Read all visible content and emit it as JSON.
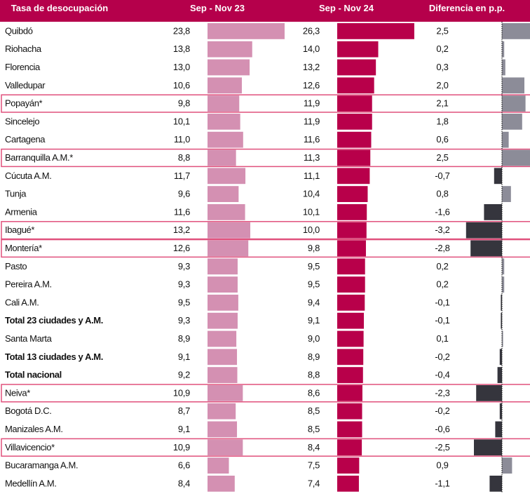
{
  "chart_data": {
    "type": "bar",
    "title": "",
    "headers": [
      "Tasa de desocupación",
      "Sep - Nov 23",
      "Sep - Nov 24",
      "Diferencia en p.p."
    ],
    "xlabel": "",
    "ylabel": "",
    "colors": {
      "header_bg": "#b5004b",
      "series_2023": "#d490b2",
      "series_2024": "#b8004a",
      "diff_positive": "#8c8c98",
      "diff_negative": "#35353d",
      "highlight_border": "#e0507c"
    },
    "categories": [
      "Quibdó",
      "Riohacha",
      "Florencia",
      "Valledupar",
      "Popayán*",
      "Sincelejo",
      "Cartagena",
      "Barranquilla A.M.*",
      "Cúcuta A.M.",
      "Tunja",
      "Armenia",
      "Ibagué*",
      "Montería*",
      "Pasto",
      "Pereira A.M.",
      "Cali A.M.",
      "Total 23 ciudades y A.M.",
      "Santa Marta",
      "Total 13 ciudades y A.M.",
      "Total nacional",
      "Neiva*",
      "Bogotá D.C.",
      "Manizales A.M.",
      "Villavicencio*",
      "Bucaramanga A.M.",
      "Medellín A.M."
    ],
    "labels_2023": [
      "23,8",
      "13,8",
      "13,0",
      "10,6",
      "9,8",
      "10,1",
      "11,0",
      "8,8",
      "11,7",
      "9,6",
      "11,6",
      "13,2",
      "12,6",
      "9,3",
      "9,3",
      "9,5",
      "9,3",
      "8,9",
      "9,1",
      "9,2",
      "10,9",
      "8,7",
      "9,1",
      "10,9",
      "6,6",
      "8,4"
    ],
    "labels_2024": [
      "26,3",
      "14,0",
      "13,2",
      "12,6",
      "11,9",
      "11,9",
      "11,6",
      "11,3",
      "11,1",
      "10,4",
      "10,1",
      "10,0",
      "9,8",
      "9,5",
      "9,5",
      "9,4",
      "9,1",
      "9,0",
      "8,9",
      "8,8",
      "8,6",
      "8,5",
      "8,5",
      "8,4",
      "7,5",
      "7,4"
    ],
    "labels_diff": [
      "2,5",
      "0,2",
      "0,3",
      "2,0",
      "2,1",
      "1,8",
      "0,6",
      "2,5",
      "-0,7",
      "0,8",
      "-1,6",
      "-3,2",
      "-2,8",
      "0,2",
      "0,2",
      "-0,1",
      "-0,1",
      "0,1",
      "-0,2",
      "-0,4",
      "-2,3",
      "-0,2",
      "-0,6",
      "-2,5",
      "0,9",
      "-1,1"
    ],
    "series": [
      {
        "name": "Sep - Nov 23",
        "values": [
          23.8,
          13.8,
          13.0,
          10.6,
          9.8,
          10.1,
          11.0,
          8.8,
          11.7,
          9.6,
          11.6,
          13.2,
          12.6,
          9.3,
          9.3,
          9.5,
          9.3,
          8.9,
          9.1,
          9.2,
          10.9,
          8.7,
          9.1,
          10.9,
          6.6,
          8.4
        ]
      },
      {
        "name": "Sep - Nov 24",
        "values": [
          26.3,
          14.0,
          13.2,
          12.6,
          11.9,
          11.9,
          11.6,
          11.3,
          11.1,
          10.4,
          10.1,
          10.0,
          9.8,
          9.5,
          9.5,
          9.4,
          9.1,
          9.0,
          8.9,
          8.8,
          8.6,
          8.5,
          8.5,
          8.4,
          7.5,
          7.4
        ]
      },
      {
        "name": "Diferencia en p.p.",
        "values": [
          2.5,
          0.2,
          0.3,
          2.0,
          2.1,
          1.8,
          0.6,
          2.5,
          -0.7,
          0.8,
          -1.6,
          -3.2,
          -2.8,
          0.2,
          0.2,
          -0.1,
          -0.1,
          0.1,
          -0.2,
          -0.4,
          -2.3,
          -0.2,
          -0.6,
          -2.5,
          0.9,
          -1.1
        ]
      }
    ],
    "bold_rows": [
      "Total 23 ciudades y A.M.",
      "Total 13 ciudades y A.M.",
      "Total nacional"
    ],
    "highlighted_rows": [
      "Popayán*",
      "Barranquilla A.M.*",
      "Ibagué*",
      "Montería*",
      "Neiva*",
      "Villavicencio*"
    ],
    "sort": "descending by Sep - Nov 24",
    "legend": "none",
    "grid": false
  }
}
